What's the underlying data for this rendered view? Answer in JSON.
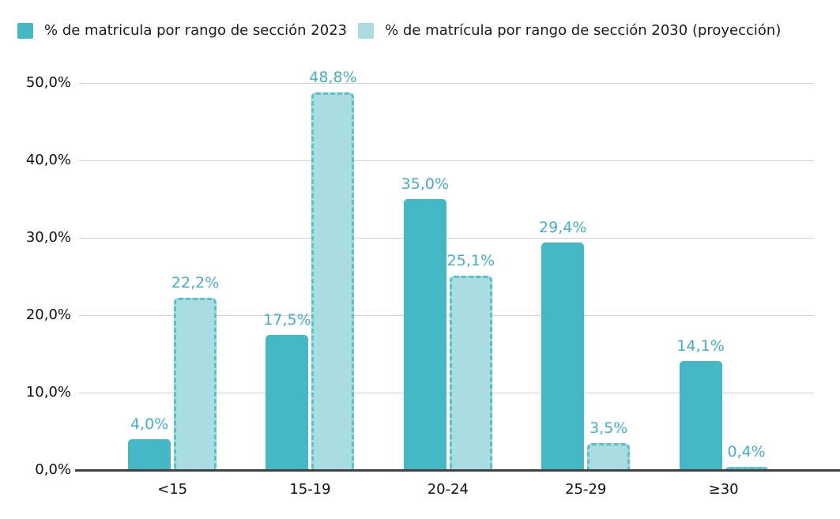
{
  "chart_data": {
    "type": "bar",
    "title": "",
    "xlabel": "",
    "ylabel": "",
    "categories": [
      "<15",
      "15-19",
      "20-24",
      "25-29",
      "≥30"
    ],
    "series": [
      {
        "name": "% de matricula por rango de sección 2023",
        "style": "solid",
        "color": "#44b8c4",
        "values": [
          4.0,
          17.5,
          35.0,
          29.4,
          14.1
        ],
        "value_labels": [
          "4,0%",
          "17,5%",
          "35,0%",
          "29,4%",
          "14,1%"
        ]
      },
      {
        "name": "% de matrícula por rango de sección 2030 (proyección)",
        "style": "dashed-outline",
        "color": "#a9dde2",
        "border_color": "#55c2cd",
        "values": [
          22.2,
          48.8,
          25.1,
          3.5,
          0.4
        ],
        "value_labels": [
          "22,2%",
          "48,8%",
          "25,1%",
          "3,5%",
          "0,4%"
        ]
      }
    ],
    "ylim": [
      0,
      50
    ],
    "y_ticks": [
      0,
      10,
      20,
      30,
      40,
      50
    ],
    "y_tick_labels": [
      "0,0%",
      "10,0%",
      "20,0%",
      "30,0%",
      "40,0%",
      "50,0%"
    ],
    "grid": true,
    "legend_position": "top-left",
    "value_label_color": "#44afc8",
    "axis_text_color": "#111111",
    "gridline_color": "#d2d2d2",
    "axis_line_color": "#424242"
  }
}
